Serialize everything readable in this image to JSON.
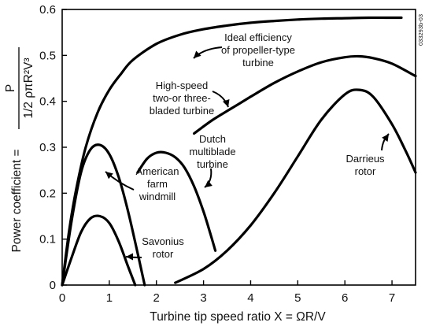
{
  "chart_data": {
    "type": "line",
    "xlabel": "Turbine tip speed ratio X = ΩR/V",
    "ylabel_main": "Power coefficient =",
    "ylabel_numerator": "P",
    "ylabel_denominator": "1/2 ρπR²V³",
    "xlim": [
      0,
      7.5
    ],
    "ylim": [
      0,
      0.6
    ],
    "x_ticks": [
      "0",
      "1",
      "2",
      "3",
      "4",
      "5",
      "6",
      "7"
    ],
    "y_ticks": [
      "0",
      "0.1",
      "0.2",
      "0.3",
      "0.4",
      "0.5",
      "0.6"
    ],
    "grid": false,
    "legend": "none",
    "figure_id": "033293b-03",
    "series": [
      {
        "name": "Ideal efficiency of propeller-type turbine",
        "label_lines": [
          "Ideal efficiency",
          "of propeller-type",
          "turbine"
        ],
        "x": [
          0.0,
          0.15,
          0.3,
          0.5,
          0.75,
          1.0,
          1.25,
          1.5,
          2.0,
          2.5,
          3.0,
          3.5,
          4.0,
          4.5,
          5.0,
          5.5,
          6.0,
          6.5,
          7.0,
          7.2
        ],
        "y": [
          0.0,
          0.12,
          0.21,
          0.3,
          0.375,
          0.425,
          0.46,
          0.49,
          0.525,
          0.545,
          0.557,
          0.565,
          0.571,
          0.575,
          0.578,
          0.58,
          0.581,
          0.582,
          0.582,
          0.582
        ]
      },
      {
        "name": "High-speed two-or three-bladed turbine",
        "label_lines": [
          "High-speed",
          "two-or three-",
          "bladed turbine"
        ],
        "x": [
          2.8,
          3.2,
          3.6,
          4.0,
          4.5,
          5.0,
          5.5,
          6.0,
          6.3,
          6.6,
          7.0,
          7.5
        ],
        "y": [
          0.33,
          0.36,
          0.385,
          0.41,
          0.44,
          0.465,
          0.485,
          0.496,
          0.498,
          0.494,
          0.482,
          0.455
        ]
      },
      {
        "name": "Dutch multiblade turbine",
        "label_lines": [
          "Dutch",
          "multiblade",
          "turbine"
        ],
        "x": [
          1.6,
          1.8,
          2.0,
          2.2,
          2.4,
          2.6,
          2.8,
          3.0,
          3.15,
          3.25
        ],
        "y": [
          0.245,
          0.275,
          0.288,
          0.288,
          0.278,
          0.255,
          0.215,
          0.16,
          0.11,
          0.075
        ]
      },
      {
        "name": "American farm windmill",
        "label_lines": [
          "American",
          "farm",
          "windmill"
        ],
        "x": [
          0.0,
          0.2,
          0.4,
          0.6,
          0.8,
          1.0,
          1.2,
          1.4,
          1.6,
          1.75
        ],
        "y": [
          0.0,
          0.14,
          0.245,
          0.295,
          0.305,
          0.285,
          0.235,
          0.16,
          0.07,
          0.0
        ]
      },
      {
        "name": "Savonius rotor",
        "label_lines": [
          "Savonius",
          "rotor"
        ],
        "x": [
          0.0,
          0.2,
          0.4,
          0.6,
          0.8,
          1.0,
          1.2,
          1.4,
          1.55
        ],
        "y": [
          0.0,
          0.06,
          0.115,
          0.145,
          0.15,
          0.135,
          0.095,
          0.04,
          0.0
        ]
      },
      {
        "name": "Darrieus rotor",
        "label_lines": [
          "Darrieus",
          "rotor"
        ],
        "x": [
          2.4,
          3.0,
          3.5,
          4.0,
          4.5,
          5.0,
          5.5,
          6.0,
          6.3,
          6.6,
          7.0,
          7.3,
          7.5
        ],
        "y": [
          0.005,
          0.035,
          0.075,
          0.13,
          0.2,
          0.28,
          0.36,
          0.415,
          0.425,
          0.41,
          0.35,
          0.29,
          0.245
        ]
      }
    ]
  }
}
